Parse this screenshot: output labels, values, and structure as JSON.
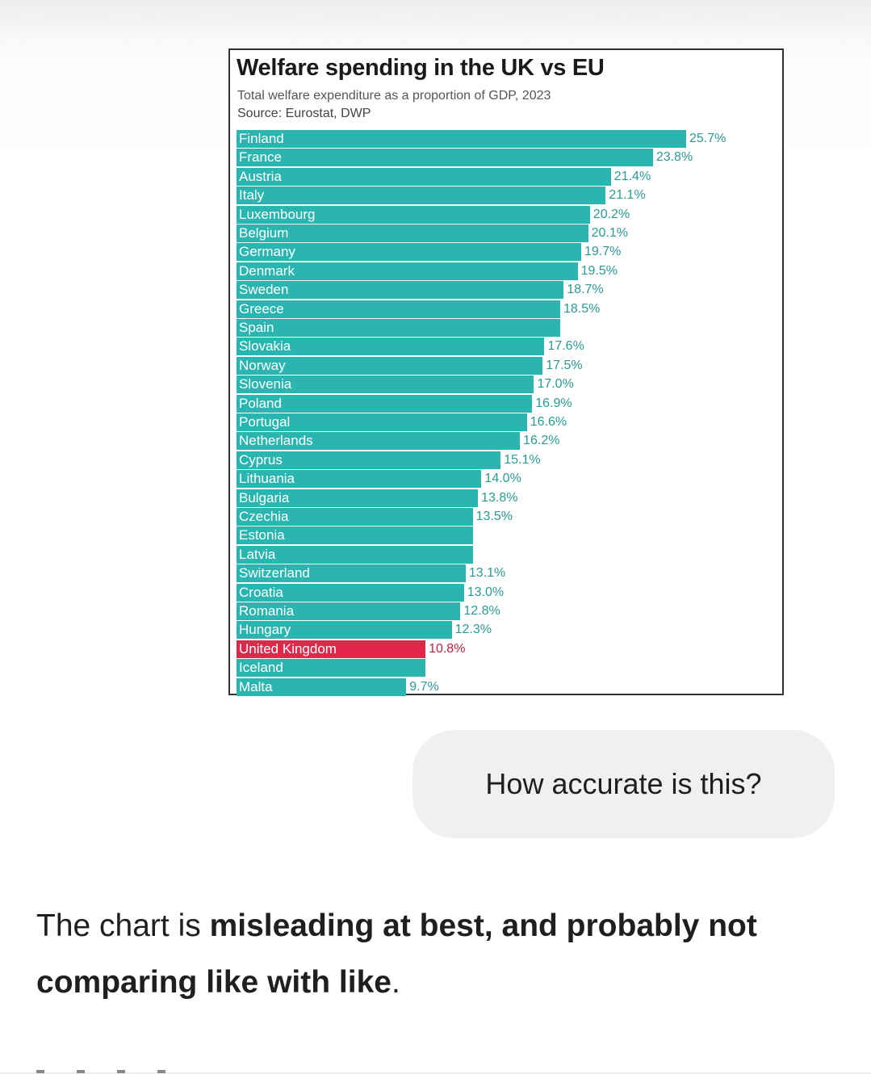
{
  "chart_data": {
    "type": "bar",
    "orientation": "horizontal",
    "title": "Welfare spending in the UK vs EU",
    "subtitle": "Total welfare expenditure as a proportion of GDP, 2023",
    "source": "Source: Eurostat, DWP",
    "xlim": [
      0,
      27
    ],
    "grid": false,
    "bar_color": "#2bb5b0",
    "highlight_color": "#e2274a",
    "categories": [
      "Finland",
      "France",
      "Austria",
      "Italy",
      "Luxembourg",
      "Belgium",
      "Germany",
      "Denmark",
      "Sweden",
      "Greece",
      "Spain",
      "Slovakia",
      "Norway",
      "Slovenia",
      "Poland",
      "Portugal",
      "Netherlands",
      "Cyprus",
      "Lithuania",
      "Bulgaria",
      "Czechia",
      "Estonia",
      "Latvia",
      "Switzerland",
      "Croatia",
      "Romania",
      "Hungary",
      "United Kingdom",
      "Iceland",
      "Malta"
    ],
    "values": [
      25.7,
      23.8,
      21.4,
      21.1,
      20.2,
      20.1,
      19.7,
      19.5,
      18.7,
      18.5,
      18.5,
      17.6,
      17.5,
      17.0,
      16.9,
      16.6,
      16.2,
      15.1,
      14.0,
      13.8,
      13.5,
      13.5,
      13.5,
      13.1,
      13.0,
      12.8,
      12.3,
      10.8,
      10.8,
      9.7
    ],
    "value_labels": [
      "25.7%",
      "23.8%",
      "21.4%",
      "21.1%",
      "20.2%",
      "20.1%",
      "19.7%",
      "19.5%",
      "18.7%",
      "18.5%",
      "",
      "17.6%",
      "17.5%",
      "17.0%",
      "16.9%",
      "16.6%",
      "16.2%",
      "15.1%",
      "14.0%",
      "13.8%",
      "13.5%",
      "",
      "",
      "13.1%",
      "13.0%",
      "12.8%",
      "12.3%",
      "10.8%",
      "",
      "9.7%"
    ],
    "highlight": "United Kingdom"
  },
  "chat": {
    "user_message": "How accurate is this?",
    "response_plain_1": "The chart is ",
    "response_bold": "misleading at best, and probably not comparing like with like",
    "response_plain_2": "."
  }
}
